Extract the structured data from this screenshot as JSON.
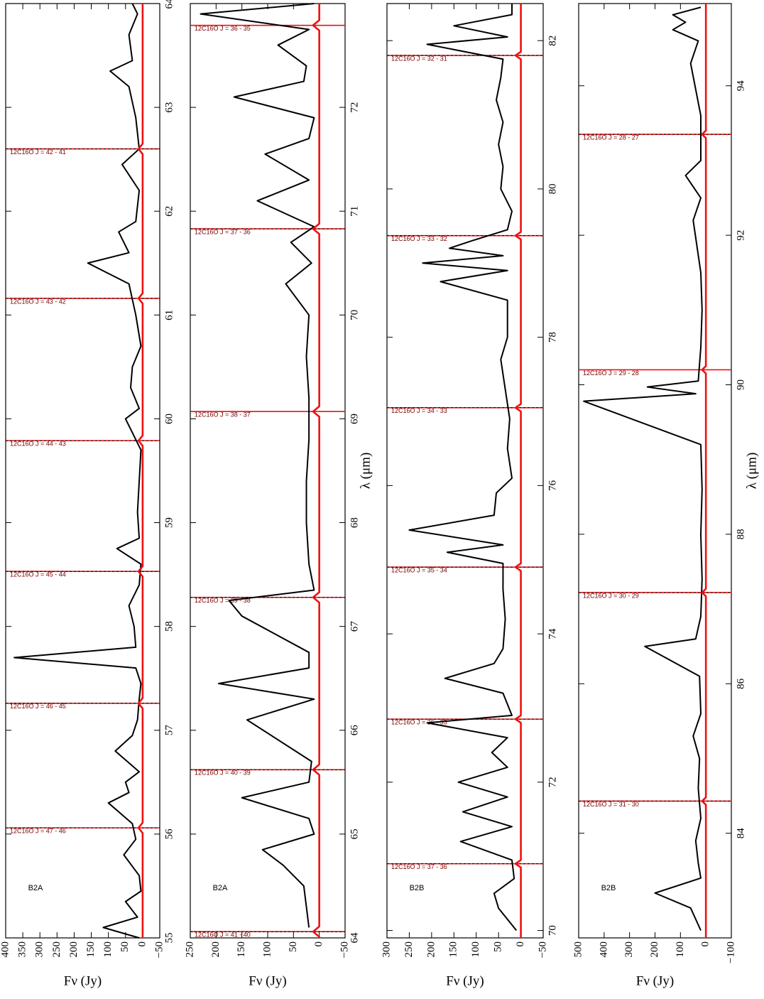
{
  "chart_data": [
    {
      "type": "line",
      "label": "B2A",
      "ylabel": "Fν (Jy)",
      "xlim": [
        55,
        64
      ],
      "ylim": [
        -50,
        400
      ],
      "xticks": [
        55,
        56,
        57,
        58,
        59,
        60,
        61,
        62,
        63,
        64
      ],
      "yticks": [
        {
          "value": -50,
          "label": "−50"
        },
        0,
        50,
        100,
        150,
        200,
        250,
        300,
        350,
        400
      ],
      "lines": [
        {
          "label": "12C16O J = 47 - 46",
          "x": 56.06,
          "dashed": true
        },
        {
          "label": "12C16O J = 46 - 45",
          "x": 57.26,
          "dashed": true
        },
        {
          "label": "12C16O J = 45 - 44",
          "x": 58.53,
          "dashed": true
        },
        {
          "label": "12C16O J = 44 - 43",
          "x": 59.79,
          "dashed": true
        },
        {
          "label": "12C16O J = 43 - 42",
          "x": 61.16,
          "dashed": true
        },
        {
          "label": "12C16O J = 42 - 41",
          "x": 62.6,
          "dashed": true
        }
      ],
      "series": [
        {
          "color": "#000000",
          "x": [
            55.0,
            55.1,
            55.2,
            55.35,
            55.45,
            55.6,
            55.8,
            55.95,
            56.1,
            56.3,
            56.4,
            56.5,
            56.6,
            56.8,
            56.95,
            57.1,
            57.3,
            57.45,
            57.6,
            57.7,
            57.8,
            58.0,
            58.2,
            58.4,
            58.6,
            58.75,
            58.85,
            59.1,
            59.4,
            59.7,
            60.0,
            60.1,
            60.3,
            60.5,
            60.7,
            61.0,
            61.3,
            61.5,
            61.6,
            61.8,
            61.9,
            62.2,
            62.45,
            62.6,
            62.9,
            63.2,
            63.35,
            63.45,
            63.7,
            63.9,
            64.0
          ],
          "values": [
            10,
            115,
            15,
            50,
            5,
            10,
            55,
            20,
            30,
            100,
            40,
            50,
            10,
            80,
            30,
            15,
            10,
            5,
            20,
            375,
            20,
            25,
            40,
            10,
            5,
            75,
            10,
            15,
            10,
            5,
            50,
            10,
            35,
            30,
            5,
            20,
            40,
            160,
            40,
            70,
            20,
            10,
            60,
            10,
            20,
            40,
            95,
            30,
            40,
            15,
            30
          ]
        },
        {
          "color": "#ee1111",
          "x": [
            55,
            56.01,
            56.06,
            56.11,
            57.21,
            57.26,
            57.31,
            58.48,
            58.53,
            58.58,
            59.74,
            59.79,
            59.84,
            61.11,
            61.16,
            61.21,
            62.55,
            62.6,
            62.65,
            64
          ],
          "values": [
            0,
            0,
            12,
            0,
            0,
            12,
            0,
            0,
            12,
            0,
            0,
            12,
            0,
            0,
            12,
            0,
            0,
            12,
            0,
            0
          ]
        }
      ]
    },
    {
      "type": "line",
      "label": "B2A",
      "ylabel": "Fν (Jy)",
      "xlabel": "λ (μm)",
      "xlim": [
        64,
        73
      ],
      "ylim": [
        -50,
        250
      ],
      "xticks": [
        64,
        65,
        66,
        67,
        68,
        69,
        70,
        71,
        72
      ],
      "yticks": [
        {
          "value": -50,
          "label": "−50"
        },
        0,
        50,
        100,
        150,
        200,
        250
      ],
      "lines": [
        {
          "label": "12C16O J = 41 - 40",
          "x": 64.06,
          "dashed": true
        },
        {
          "label": "12C16O J = 40 - 39",
          "x": 65.62,
          "dashed": true
        },
        {
          "label": "12C16O J = 39 - 38",
          "x": 67.28,
          "dashed": true
        },
        {
          "label": "12C16O J = 38 - 37",
          "x": 69.07,
          "dashed": false
        },
        {
          "label": "12C16O J = 37 - 36",
          "x": 70.83,
          "dashed": true
        },
        {
          "label": "12C16O J = 36 - 35",
          "x": 72.79,
          "dashed": false
        }
      ],
      "series": [
        {
          "color": "#000000",
          "x": [
            64.1,
            64.5,
            64.7,
            64.85,
            65.0,
            65.15,
            65.35,
            65.5,
            65.7,
            66.1,
            66.3,
            66.45,
            66.6,
            66.75,
            67.1,
            67.25,
            67.35,
            67.6,
            68.0,
            68.4,
            68.8,
            69.2,
            69.6,
            70.0,
            70.3,
            70.5,
            70.7,
            70.85,
            71.1,
            71.3,
            71.55,
            71.7,
            71.9,
            72.1,
            72.25,
            72.4,
            72.6,
            72.75,
            72.9,
            73.0
          ],
          "values": [
            20,
            30,
            70,
            110,
            10,
            20,
            150,
            20,
            15,
            140,
            10,
            195,
            20,
            20,
            150,
            175,
            10,
            20,
            25,
            25,
            20,
            20,
            25,
            20,
            65,
            15,
            55,
            10,
            120,
            20,
            105,
            20,
            10,
            165,
            30,
            25,
            80,
            20,
            230,
            10
          ]
        },
        {
          "color": "#ee1111",
          "x": [
            64,
            64.01,
            64.06,
            64.11,
            65.57,
            65.62,
            65.67,
            67.23,
            67.28,
            67.33,
            69.02,
            69.07,
            69.12,
            70.78,
            70.83,
            70.88,
            72.74,
            72.79,
            72.84,
            73
          ],
          "values": [
            0,
            0,
            12,
            0,
            0,
            12,
            0,
            0,
            12,
            0,
            0,
            12,
            0,
            0,
            12,
            0,
            0,
            12,
            0,
            0
          ]
        }
      ]
    },
    {
      "type": "line",
      "label": "B2B",
      "ylabel": "Fν (Jy)",
      "xlim": [
        69.9,
        82.5
      ],
      "ylim": [
        -50,
        300
      ],
      "xticks": [
        70,
        72,
        74,
        76,
        78,
        80,
        82
      ],
      "yticks": [
        {
          "value": -50,
          "label": "−50"
        },
        0,
        50,
        100,
        150,
        200,
        250,
        300
      ],
      "lines": [
        {
          "label": "12C16O J = 37 - 36",
          "x": 70.9,
          "dashed": true
        },
        {
          "label": "12C16O J = 36 - 35",
          "x": 72.85,
          "dashed": true
        },
        {
          "label": "12C16O J = 35 - 34",
          "x": 74.9,
          "dashed": true
        },
        {
          "label": "12C16O J = 34 - 33",
          "x": 77.05,
          "dashed": true
        },
        {
          "label": "12C16O J = 33 - 32",
          "x": 79.37,
          "dashed": true
        },
        {
          "label": "12C16O J = 32 - 31",
          "x": 81.8,
          "dashed": true
        }
      ],
      "series": [
        {
          "color": "#000000",
          "x": [
            70.0,
            70.3,
            70.5,
            70.7,
            70.95,
            71.2,
            71.4,
            71.6,
            71.8,
            72.0,
            72.2,
            72.4,
            72.6,
            72.8,
            72.9,
            73.2,
            73.4,
            73.6,
            73.8,
            74.2,
            74.6,
            74.95,
            75.1,
            75.2,
            75.4,
            75.6,
            75.9,
            76.1,
            76.5,
            76.9,
            77.3,
            77.7,
            78.0,
            78.5,
            78.75,
            78.9,
            79.0,
            79.1,
            79.2,
            79.3,
            79.45,
            79.7,
            80.0,
            80.3,
            80.6,
            80.9,
            81.2,
            81.5,
            81.75,
            81.95,
            82.05,
            82.2,
            82.35,
            82.5
          ],
          "values": [
            10,
            50,
            60,
            15,
            20,
            135,
            20,
            130,
            30,
            140,
            30,
            65,
            30,
            210,
            20,
            40,
            170,
            60,
            40,
            35,
            40,
            40,
            165,
            40,
            250,
            60,
            55,
            20,
            30,
            25,
            35,
            45,
            30,
            30,
            180,
            30,
            220,
            40,
            160,
            110,
            30,
            20,
            45,
            40,
            50,
            40,
            55,
            45,
            40,
            210,
            30,
            150,
            20,
            20
          ]
        },
        {
          "color": "#ee1111",
          "x": [
            69.9,
            70.85,
            70.9,
            70.95,
            72.8,
            72.85,
            72.9,
            74.85,
            74.9,
            74.95,
            77.0,
            77.05,
            77.1,
            79.32,
            79.37,
            79.42,
            81.75,
            81.8,
            81.85,
            82.5
          ],
          "values": [
            0,
            0,
            12,
            0,
            0,
            12,
            0,
            0,
            12,
            0,
            0,
            12,
            0,
            0,
            12,
            0,
            0,
            12,
            0,
            0
          ]
        }
      ]
    },
    {
      "type": "line",
      "label": "B2B",
      "ylabel": "Fν (Jy)",
      "xlabel": "λ (μm)",
      "xlim": [
        82.6,
        95.1
      ],
      "ylim": [
        -100,
        500
      ],
      "xticks": [
        84,
        86,
        88,
        90,
        92,
        94
      ],
      "yticks": [
        {
          "value": -100,
          "label": "−100"
        },
        0,
        100,
        200,
        300,
        400,
        500
      ],
      "lines": [
        {
          "label": "12C16O J = 31 - 30",
          "x": 84.43,
          "dashed": true
        },
        {
          "label": "12C16O J = 30 - 29",
          "x": 87.22,
          "dashed": true
        },
        {
          "label": "12C16O J = 29 - 28",
          "x": 90.2,
          "dashed": false
        },
        {
          "label": "12C16O J = 28 - 27",
          "x": 93.35,
          "dashed": true
        }
      ],
      "series": [
        {
          "color": "#000000",
          "x": [
            82.7,
            83.0,
            83.2,
            83.4,
            83.6,
            83.9,
            84.2,
            84.6,
            85.0,
            85.3,
            85.6,
            86.1,
            86.5,
            86.6,
            86.9,
            87.4,
            88.0,
            88.6,
            89.2,
            89.78,
            89.88,
            89.97,
            90.05,
            90.5,
            91.0,
            91.5,
            92.2,
            92.5,
            92.8,
            93.0,
            93.6,
            94.3,
            94.6,
            94.75,
            94.85,
            94.95,
            95.05
          ],
          "values": [
            20,
            60,
            200,
            20,
            30,
            40,
            20,
            30,
            25,
            50,
            20,
            25,
            240,
            40,
            20,
            15,
            20,
            15,
            20,
            480,
            40,
            230,
            30,
            20,
            15,
            20,
            50,
            20,
            80,
            20,
            20,
            60,
            30,
            130,
            80,
            130,
            20
          ]
        },
        {
          "color": "#ee1111",
          "x": [
            82.6,
            84.38,
            84.43,
            84.48,
            87.17,
            87.22,
            87.27,
            90.15,
            90.2,
            90.25,
            93.3,
            93.35,
            93.4,
            95.1
          ],
          "values": [
            0,
            0,
            15,
            0,
            0,
            15,
            0,
            0,
            15,
            0,
            0,
            15,
            0,
            0
          ]
        }
      ]
    }
  ]
}
